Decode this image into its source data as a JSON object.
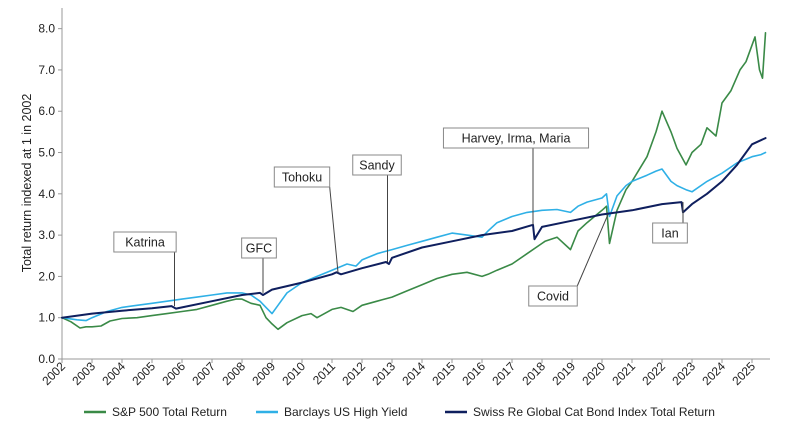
{
  "chart_data": {
    "type": "line",
    "ylabel": "Total return indexed at 1 in 2002",
    "xlabel": "",
    "ylim": [
      0,
      8.5
    ],
    "xlim": [
      2002,
      2025.6
    ],
    "y_ticks": [
      0.0,
      1.0,
      2.0,
      3.0,
      4.0,
      5.0,
      6.0,
      7.0,
      8.0
    ],
    "y_tick_labels": [
      "0.0",
      "1.0",
      "2.0",
      "3.0",
      "4.0",
      "5.0",
      "6.0",
      "7.0",
      "8.0"
    ],
    "x_ticks": [
      2002,
      2003,
      2004,
      2005,
      2006,
      2007,
      2008,
      2009,
      2010,
      2011,
      2012,
      2013,
      2014,
      2015,
      2016,
      2017,
      2018,
      2019,
      2020,
      2021,
      2022,
      2023,
      2024,
      2025
    ],
    "x_tick_labels": [
      "2002",
      "2003",
      "2004",
      "2005",
      "2006",
      "2007",
      "2008",
      "2009",
      "2010",
      "2011",
      "2012",
      "2013",
      "2014",
      "2015",
      "2016",
      "2017",
      "2018",
      "2019",
      "2020",
      "2021",
      "2022",
      "2023",
      "2024",
      "2025"
    ],
    "grid": false,
    "legend_position": "bottom",
    "series": [
      {
        "name": "S&P 500 Total Return",
        "color": "#3a8a47",
        "x": [
          2002.0,
          2002.3,
          2002.6,
          2002.8,
          2003.0,
          2003.3,
          2003.6,
          2004.0,
          2004.5,
          2005.0,
          2005.5,
          2006.0,
          2006.5,
          2007.0,
          2007.5,
          2007.8,
          2008.0,
          2008.3,
          2008.6,
          2008.8,
          2009.0,
          2009.2,
          2009.5,
          2010.0,
          2010.3,
          2010.5,
          2011.0,
          2011.3,
          2011.7,
          2012.0,
          2012.5,
          2013.0,
          2013.5,
          2014.0,
          2014.5,
          2015.0,
          2015.5,
          2016.0,
          2016.2,
          2016.5,
          2017.0,
          2017.5,
          2018.0,
          2018.1,
          2018.5,
          2018.95,
          2019.2,
          2019.5,
          2020.0,
          2020.15,
          2020.25,
          2020.5,
          2020.8,
          2021.0,
          2021.5,
          2021.8,
          2022.0,
          2022.3,
          2022.5,
          2022.8,
          2023.0,
          2023.3,
          2023.5,
          2023.8,
          2024.0,
          2024.3,
          2024.6,
          2024.8,
          2025.0,
          2025.1,
          2025.25,
          2025.35,
          2025.45
        ],
        "values": [
          1.0,
          0.9,
          0.75,
          0.78,
          0.78,
          0.8,
          0.92,
          0.98,
          1.0,
          1.05,
          1.1,
          1.15,
          1.2,
          1.3,
          1.4,
          1.45,
          1.45,
          1.35,
          1.3,
          1.0,
          0.85,
          0.72,
          0.88,
          1.05,
          1.1,
          1.0,
          1.2,
          1.25,
          1.15,
          1.3,
          1.4,
          1.5,
          1.65,
          1.8,
          1.95,
          2.05,
          2.1,
          2.0,
          2.05,
          2.15,
          2.3,
          2.55,
          2.8,
          2.85,
          2.95,
          2.65,
          3.1,
          3.3,
          3.6,
          3.7,
          2.8,
          3.6,
          4.1,
          4.3,
          4.9,
          5.5,
          6.0,
          5.5,
          5.1,
          4.7,
          5.0,
          5.2,
          5.6,
          5.4,
          6.2,
          6.5,
          7.0,
          7.2,
          7.6,
          7.8,
          7.0,
          6.8,
          7.9
        ]
      },
      {
        "name": "Barclays US High Yield",
        "color": "#2fb0e6",
        "x": [
          2002.0,
          2002.5,
          2002.8,
          2003.0,
          2003.5,
          2004.0,
          2004.5,
          2005.0,
          2005.5,
          2006.0,
          2006.5,
          2007.0,
          2007.5,
          2008.0,
          2008.3,
          2008.6,
          2008.8,
          2009.0,
          2009.2,
          2009.5,
          2010.0,
          2010.5,
          2011.0,
          2011.5,
          2011.8,
          2012.0,
          2012.5,
          2013.0,
          2013.5,
          2014.0,
          2014.5,
          2015.0,
          2015.5,
          2016.0,
          2016.2,
          2016.5,
          2017.0,
          2017.5,
          2018.0,
          2018.5,
          2018.95,
          2019.2,
          2019.5,
          2020.0,
          2020.15,
          2020.25,
          2020.5,
          2020.8,
          2021.0,
          2021.5,
          2021.8,
          2022.0,
          2022.3,
          2022.5,
          2022.8,
          2023.0,
          2023.5,
          2024.0,
          2024.5,
          2025.0,
          2025.3,
          2025.45
        ],
        "values": [
          1.0,
          0.95,
          0.93,
          1.0,
          1.15,
          1.25,
          1.3,
          1.35,
          1.4,
          1.45,
          1.5,
          1.55,
          1.6,
          1.6,
          1.55,
          1.4,
          1.25,
          1.1,
          1.3,
          1.6,
          1.85,
          2.0,
          2.15,
          2.3,
          2.25,
          2.4,
          2.55,
          2.65,
          2.75,
          2.85,
          2.95,
          3.05,
          3.0,
          2.95,
          3.1,
          3.3,
          3.45,
          3.55,
          3.6,
          3.62,
          3.55,
          3.7,
          3.8,
          3.9,
          4.0,
          3.45,
          3.95,
          4.2,
          4.3,
          4.45,
          4.55,
          4.6,
          4.3,
          4.2,
          4.1,
          4.05,
          4.3,
          4.5,
          4.75,
          4.9,
          4.95,
          5.0
        ]
      },
      {
        "name": "Swiss Re Global Cat Bond Index Total Return",
        "color": "#0f1f5e",
        "x": [
          2002.0,
          2003.0,
          2004.0,
          2005.0,
          2005.65,
          2005.8,
          2006.0,
          2007.0,
          2008.0,
          2008.6,
          2008.7,
          2009.0,
          2010.0,
          2011.0,
          2011.15,
          2011.3,
          2012.0,
          2012.8,
          2012.9,
          2013.0,
          2014.0,
          2015.0,
          2016.0,
          2017.0,
          2017.7,
          2017.75,
          2018.0,
          2019.0,
          2020.0,
          2021.0,
          2022.0,
          2022.65,
          2022.7,
          2023.0,
          2023.5,
          2024.0,
          2024.5,
          2025.0,
          2025.45
        ],
        "values": [
          1.0,
          1.1,
          1.17,
          1.23,
          1.28,
          1.22,
          1.25,
          1.4,
          1.55,
          1.6,
          1.55,
          1.68,
          1.85,
          2.05,
          2.1,
          2.05,
          2.2,
          2.35,
          2.3,
          2.45,
          2.7,
          2.85,
          3.0,
          3.1,
          3.25,
          2.9,
          3.2,
          3.35,
          3.5,
          3.6,
          3.75,
          3.8,
          3.55,
          3.75,
          4.0,
          4.3,
          4.7,
          5.2,
          5.35
        ]
      }
    ],
    "annotations": [
      {
        "label": "Katrina",
        "x": 2005.75,
        "y": 1.28
      },
      {
        "label": "GFC",
        "x": 2008.7,
        "y": 1.6
      },
      {
        "label": "Tohoku",
        "x": 2011.2,
        "y": 2.1
      },
      {
        "label": "Sandy",
        "x": 2012.85,
        "y": 2.35
      },
      {
        "label": "Harvey, Irma, Maria",
        "x": 2017.7,
        "y": 3.25
      },
      {
        "label": "Covid",
        "x": 2020.2,
        "y": 3.5
      },
      {
        "label": "Ian",
        "x": 2022.7,
        "y": 3.8
      }
    ]
  }
}
